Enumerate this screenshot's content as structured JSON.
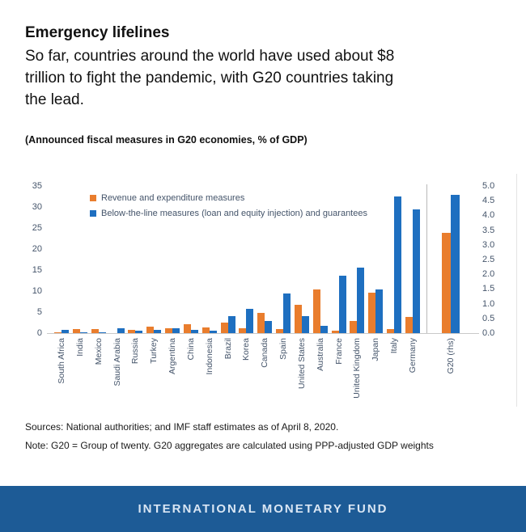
{
  "header": {
    "title": "Emergency lifelines",
    "description": "So far, countries around the world have used about $8\ntrillion to fight the pandemic, with G20 countries taking\nthe lead."
  },
  "chart": {
    "subtitle": "(Announced fiscal measures in G20 economies, % of GDP)"
  },
  "chart_data": {
    "type": "bar",
    "title": "(Announced fiscal measures in G20 economies, % of GDP)",
    "units": "% of GDP",
    "grid": false,
    "legend_position": "top-left",
    "categories": [
      "South Africa",
      "India",
      "Mexico",
      "Saudi Arabia",
      "Russia",
      "Turkey",
      "Argentina",
      "China",
      "Indonesia",
      "Brazil",
      "Korea",
      "Canada",
      "Spain",
      "United States",
      "Australia",
      "France",
      "United Kingdom",
      "Japan",
      "Italy",
      "Germany",
      "G20 (rhs)"
    ],
    "series": [
      {
        "name": "Revenue and expenditure measures",
        "color": "#E97D2D",
        "values": [
          0.1,
          1.0,
          1.0,
          0,
          0.8,
          1.6,
          1.1,
          2.2,
          1.3,
          2.5,
          1.1,
          4.8,
          0.9,
          6.7,
          10.3,
          0.6,
          2.8,
          9.6,
          1.0,
          3.9,
          3.4
        ]
      },
      {
        "name": "Below-the-line measures (loan and equity injection) and guarantees",
        "color": "#1E6FC0",
        "values": [
          0.8,
          0.1,
          0.2,
          1.1,
          0.6,
          0.7,
          1.2,
          0.7,
          0.6,
          4.0,
          5.8,
          2.9,
          9.5,
          4.0,
          1.7,
          13.7,
          15.5,
          10.3,
          32.5,
          29.5,
          4.7
        ]
      }
    ],
    "left_axis": {
      "ticks": [
        0,
        5,
        10,
        15,
        20,
        25,
        30,
        35
      ],
      "max": 35
    },
    "right_axis": {
      "ticks": [
        "0.0",
        "0.5",
        "1.0",
        "1.5",
        "2.0",
        "2.5",
        "3.0",
        "3.5",
        "4.0",
        "4.5",
        "5.0"
      ],
      "max": 5.0
    },
    "right_scale_categories": [
      "G20 (rhs)"
    ]
  },
  "footer": {
    "sources": "Sources: National authorities; and IMF staff estimates as of April 8, 2020.",
    "note": "Note: G20 = Group of twenty. G20 aggregates are calculated using PPP-adjusted GDP weights"
  },
  "banner": {
    "text": "INTERNATIONAL MONETARY FUND",
    "background_color": "#1D5B96",
    "text_color": "#D9E6F4"
  }
}
